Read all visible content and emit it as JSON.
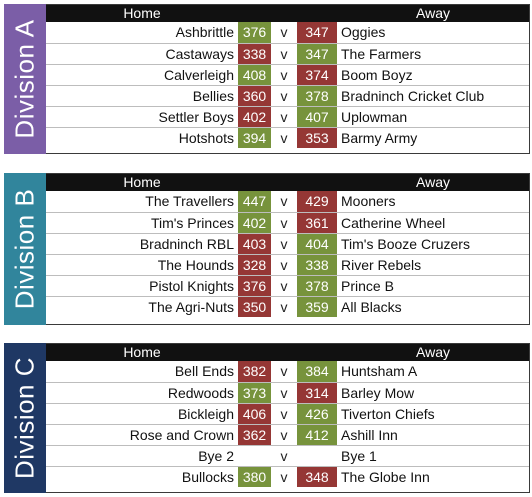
{
  "divisions": [
    {
      "label": "Division A",
      "color": "#7b5ea7",
      "header": {
        "home": "Home",
        "away": "Away"
      },
      "matches": [
        {
          "home": "Ashbrittle",
          "home_score": "376",
          "home_result": "win",
          "vs": "v",
          "away_score": "347",
          "away_result": "loss",
          "away": "Oggies"
        },
        {
          "home": "Castaways",
          "home_score": "338",
          "home_result": "loss",
          "vs": "v",
          "away_score": "347",
          "away_result": "win",
          "away": "The Farmers"
        },
        {
          "home": "Calverleigh",
          "home_score": "408",
          "home_result": "win",
          "vs": "v",
          "away_score": "374",
          "away_result": "loss",
          "away": "Boom Boyz"
        },
        {
          "home": "Bellies",
          "home_score": "360",
          "home_result": "loss",
          "vs": "v",
          "away_score": "378",
          "away_result": "win",
          "away": "Bradninch Cricket Club"
        },
        {
          "home": "Settler Boys",
          "home_score": "402",
          "home_result": "loss",
          "vs": "v",
          "away_score": "407",
          "away_result": "win",
          "away": "Uplowman"
        },
        {
          "home": "Hotshots",
          "home_score": "394",
          "home_result": "win",
          "vs": "v",
          "away_score": "353",
          "away_result": "loss",
          "away": "Barmy Army"
        }
      ]
    },
    {
      "label": "Division B",
      "color": "#31859c",
      "header": {
        "home": "Home",
        "away": "Away"
      },
      "matches": [
        {
          "home": "The Travellers",
          "home_score": "447",
          "home_result": "win",
          "vs": "v",
          "away_score": "429",
          "away_result": "loss",
          "away": "Mooners"
        },
        {
          "home": "Tim's Princes",
          "home_score": "402",
          "home_result": "win",
          "vs": "v",
          "away_score": "361",
          "away_result": "loss",
          "away": "Catherine Wheel"
        },
        {
          "home": "Bradninch RBL",
          "home_score": "403",
          "home_result": "loss",
          "vs": "v",
          "away_score": "404",
          "away_result": "win",
          "away": "Tim's Booze Cruzers"
        },
        {
          "home": "The Hounds",
          "home_score": "328",
          "home_result": "loss",
          "vs": "v",
          "away_score": "338",
          "away_result": "win",
          "away": "River Rebels"
        },
        {
          "home": "Pistol Knights",
          "home_score": "376",
          "home_result": "loss",
          "vs": "v",
          "away_score": "378",
          "away_result": "win",
          "away": "Prince B"
        },
        {
          "home": "The Agri-Nuts",
          "home_score": "350",
          "home_result": "loss",
          "vs": "v",
          "away_score": "359",
          "away_result": "win",
          "away": "All Blacks"
        }
      ]
    },
    {
      "label": "Division C",
      "color": "#1f3864",
      "header": {
        "home": "Home",
        "away": "Away"
      },
      "matches": [
        {
          "home": "Bell Ends",
          "home_score": "382",
          "home_result": "loss",
          "vs": "v",
          "away_score": "384",
          "away_result": "win",
          "away": "Huntsham A"
        },
        {
          "home": "Redwoods",
          "home_score": "373",
          "home_result": "win",
          "vs": "v",
          "away_score": "314",
          "away_result": "loss",
          "away": "Barley Mow"
        },
        {
          "home": "Bickleigh",
          "home_score": "406",
          "home_result": "loss",
          "vs": "v",
          "away_score": "426",
          "away_result": "win",
          "away": "Tiverton Chiefs"
        },
        {
          "home": "Rose and Crown",
          "home_score": "362",
          "home_result": "loss",
          "vs": "v",
          "away_score": "412",
          "away_result": "win",
          "away": "Ashill Inn"
        },
        {
          "home": "Bye 2",
          "home_score": "",
          "home_result": "none",
          "vs": "v",
          "away_score": "",
          "away_result": "none",
          "away": "Bye 1"
        },
        {
          "home": "Bullocks",
          "home_score": "380",
          "home_result": "win",
          "vs": "v",
          "away_score": "348",
          "away_result": "loss",
          "away": "The Globe Inn"
        }
      ]
    }
  ]
}
